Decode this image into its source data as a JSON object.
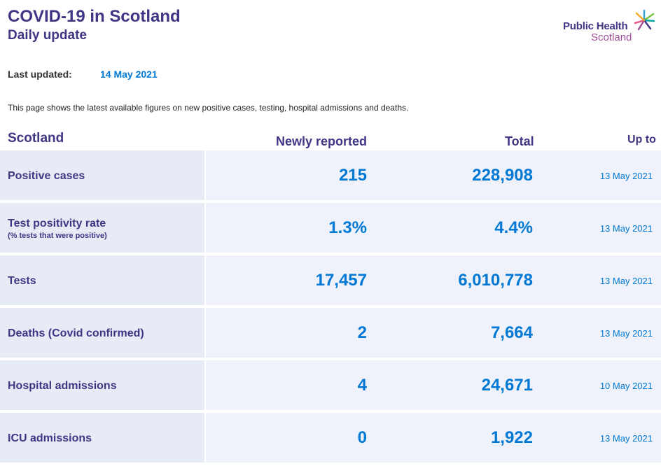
{
  "header": {
    "title": "COVID-19 in Scotland",
    "subtitle": "Daily update"
  },
  "logo": {
    "line1": "Public Health",
    "line2": "Scotland"
  },
  "updated": {
    "label": "Last updated:",
    "value": "14 May 2021"
  },
  "intro": "This page shows the latest available figures on new positive cases, testing, hospital admissions and deaths.",
  "table": {
    "columns": {
      "region": "Scotland",
      "new": "Newly reported",
      "total": "Total",
      "upto": "Up to"
    },
    "rows": [
      {
        "label": "Positive cases",
        "sublabel": "",
        "new": "215",
        "total": "228,908",
        "date": "13 May 2021"
      },
      {
        "label": "Test positivity rate",
        "sublabel": "(% tests that were positive)",
        "new": "1.3%",
        "total": "4.4%",
        "date": "13 May 2021"
      },
      {
        "label": "Tests",
        "sublabel": "",
        "new": "17,457",
        "total": "6,010,778",
        "date": "13 May 2021"
      },
      {
        "label": "Deaths (Covid confirmed)",
        "sublabel": "",
        "new": "2",
        "total": "7,664",
        "date": "13 May 2021"
      },
      {
        "label": "Hospital admissions",
        "sublabel": "",
        "new": "4",
        "total": "24,671",
        "date": "10 May 2021"
      },
      {
        "label": "ICU admissions",
        "sublabel": "",
        "new": "0",
        "total": "1,922",
        "date": "13 May 2021"
      }
    ]
  },
  "colors": {
    "brand_purple": "#3f3685",
    "accent_blue": "#0078d4",
    "logo_magenta": "#9b4f96",
    "row_label_bg": "#e7ebf5",
    "row_bg": "#eff2fa"
  },
  "icons": {
    "logo_mark": "star-burst-icon"
  }
}
